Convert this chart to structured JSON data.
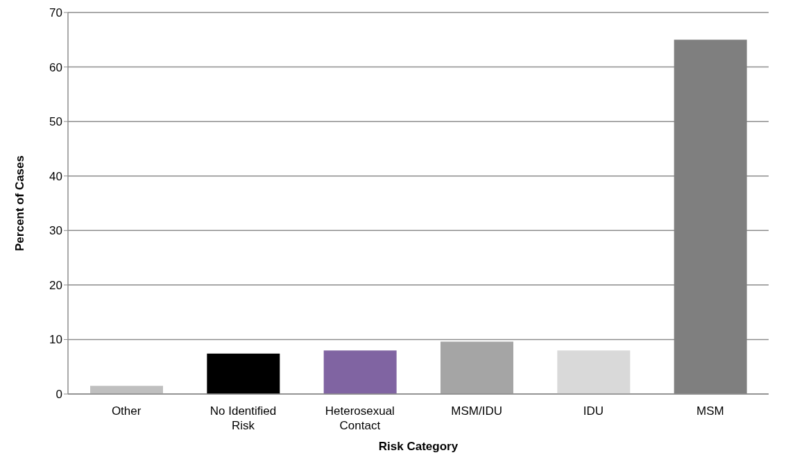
{
  "chart_data": {
    "type": "bar",
    "xlabel": "Risk Category",
    "ylabel": "Percent of Cases",
    "categories": [
      "Other",
      "No Identified Risk",
      "Heterosexual Contact",
      "MSM/IDU",
      "IDU",
      "MSM"
    ],
    "values": [
      1.5,
      7.4,
      8.0,
      9.6,
      8.0,
      65
    ],
    "colors": [
      "#bfbfbf",
      "#000000",
      "#8064a2",
      "#a5a5a5",
      "#d9d9d9",
      "#7f7f7f"
    ],
    "ylim": [
      0,
      70
    ],
    "yticks": [
      0,
      10,
      20,
      30,
      40,
      50,
      60,
      70
    ],
    "grid": "y"
  }
}
